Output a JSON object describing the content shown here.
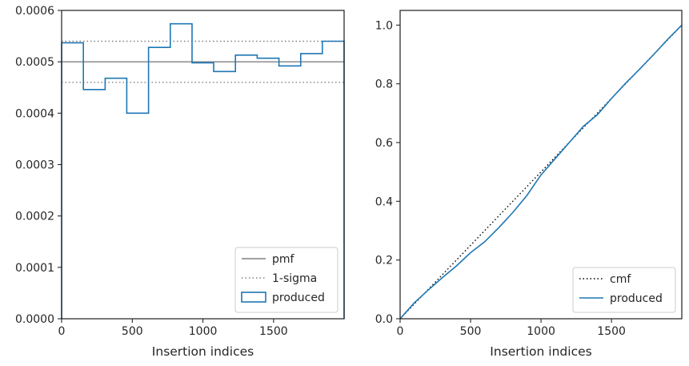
{
  "colors": {
    "produced": "#1f77b4",
    "pmf": "#808080",
    "sigma": "#808080",
    "cmf": "#000000",
    "axes": "#262626"
  },
  "chart_data": [
    {
      "type": "line",
      "subtype": "step-histogram",
      "xlabel": "Insertion indices",
      "ylabel": "",
      "xlim": [
        0,
        1999
      ],
      "ylim": [
        0,
        0.0006
      ],
      "xticks": [
        0,
        500,
        1000,
        1500
      ],
      "xtick_labels": [
        "0",
        "500",
        "1000",
        "1500"
      ],
      "yticks": [
        0,
        0.0001,
        0.0002,
        0.0003,
        0.0004,
        0.0005,
        0.0006
      ],
      "ytick_labels": [
        "0.0000",
        "0.0001",
        "0.0002",
        "0.0003",
        "0.0004",
        "0.0005",
        "0.0006"
      ],
      "grid": false,
      "legend_position": "lower-right",
      "series": [
        {
          "name": "pmf",
          "style": "solid",
          "color_key": "pmf",
          "x": [
            0,
            1999
          ],
          "y": [
            0.0005,
            0.0005
          ]
        },
        {
          "name": "1-sigma",
          "style": "dotted",
          "color_key": "sigma",
          "x": [
            0,
            1999
          ],
          "y": [
            0.00054,
            0.00054
          ]
        },
        {
          "name": "",
          "style": "dotted",
          "color_key": "sigma",
          "x": [
            0,
            1999
          ],
          "y": [
            0.00046,
            0.00046
          ]
        },
        {
          "name": "produced",
          "style": "step",
          "color_key": "produced",
          "bin_edges": [
            0,
            154,
            308,
            461,
            615,
            769,
            923,
            1076,
            1230,
            1384,
            1538,
            1692,
            1845,
            1999
          ],
          "values": [
            0.000537,
            0.000446,
            0.000468,
            0.0004,
            0.000528,
            0.000574,
            0.000498,
            0.000481,
            0.000513,
            0.000507,
            0.000492,
            0.000516,
            0.00054
          ]
        }
      ]
    },
    {
      "type": "line",
      "xlabel": "Insertion indices",
      "ylabel": "",
      "xlim": [
        0,
        1999
      ],
      "ylim": [
        0,
        1.05
      ],
      "xticks": [
        0,
        500,
        1000,
        1500
      ],
      "xtick_labels": [
        "0",
        "500",
        "1000",
        "1500"
      ],
      "yticks": [
        0,
        0.2,
        0.4,
        0.6,
        0.8,
        1.0
      ],
      "ytick_labels": [
        "0.0",
        "0.2",
        "0.4",
        "0.6",
        "0.8",
        "1.0"
      ],
      "grid": false,
      "legend_position": "lower-right",
      "series": [
        {
          "name": "cmf",
          "style": "dotted",
          "color_key": "cmf",
          "x": [
            0,
            1999
          ],
          "y": [
            0,
            1.0
          ]
        },
        {
          "name": "produced",
          "style": "solid",
          "color_key": "produced",
          "x": [
            0,
            100,
            200,
            300,
            400,
            500,
            600,
            700,
            800,
            900,
            1000,
            1100,
            1200,
            1300,
            1400,
            1500,
            1600,
            1700,
            1800,
            1900,
            1999
          ],
          "y": [
            0,
            0.054,
            0.098,
            0.14,
            0.18,
            0.225,
            0.262,
            0.31,
            0.362,
            0.42,
            0.49,
            0.545,
            0.6,
            0.655,
            0.695,
            0.75,
            0.802,
            0.85,
            0.9,
            0.952,
            1.0
          ]
        }
      ]
    }
  ]
}
